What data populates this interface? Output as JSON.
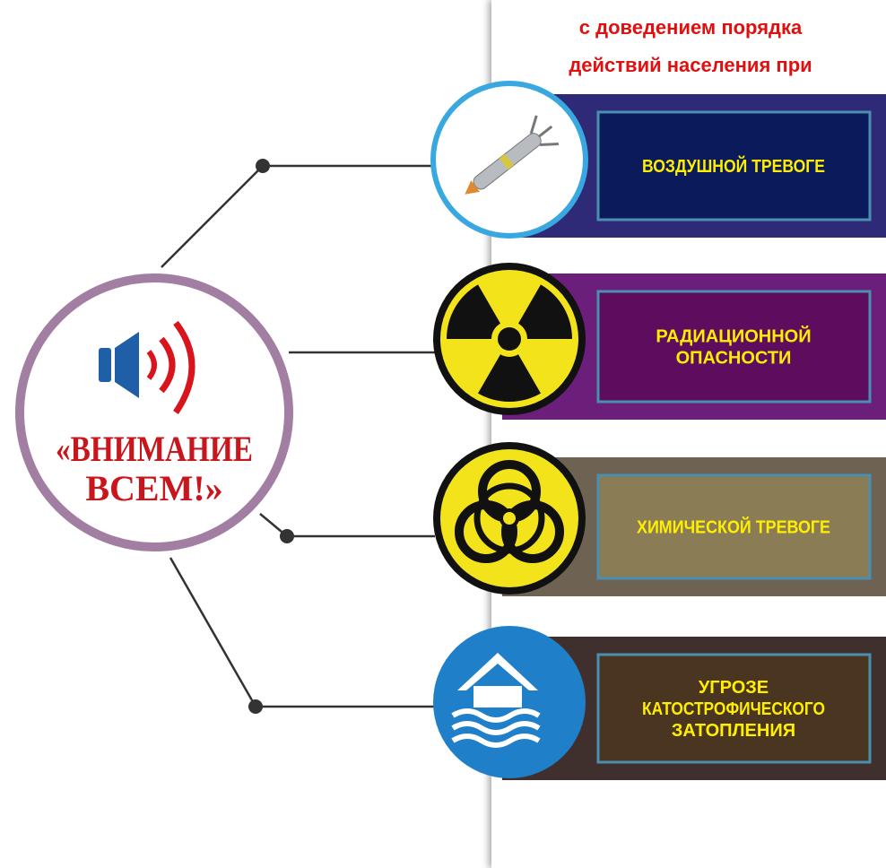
{
  "header": {
    "lines": [
      "с доведением порядка",
      "действий населения при"
    ]
  },
  "center": {
    "lines": [
      "«ВНИМАНИЕ",
      "ВСЕМ!»"
    ]
  },
  "items": [
    {
      "lines": [
        "ВОЗДУШНОЙ ТРЕВОГЕ"
      ]
    },
    {
      "lines": [
        "РАДИАЦИОННОЙ",
        "ОПАСНОСТИ"
      ]
    },
    {
      "lines": [
        "ХИМИЧЕСКОЙ ТРЕВОГЕ"
      ]
    },
    {
      "lines": [
        "УГРОЗЕ",
        "КАТОСТРОФИЧЕСКОГО",
        "ЗАТОПЛЕНИЯ"
      ]
    }
  ]
}
